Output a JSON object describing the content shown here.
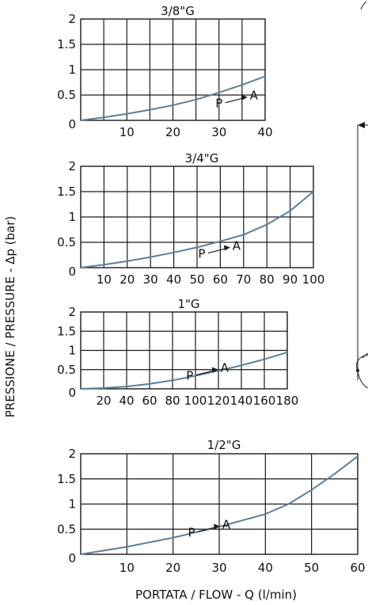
{
  "y_axis_label": "PRESSIONE / PRESSURE - Δp (bar)",
  "x_axis_label": "PORTATA / FLOW - Q (l/min)",
  "chart_data": [
    {
      "type": "line",
      "title": "3/8\"G",
      "xlim": [
        0,
        40
      ],
      "ylim": [
        0,
        2
      ],
      "x_ticks": [
        10,
        20,
        30,
        40
      ],
      "y_ticks": [
        "0",
        "0.5",
        "1",
        "1.5",
        "2"
      ],
      "series": [
        {
          "name": "P→A",
          "x": [
            0,
            5,
            10,
            15,
            20,
            25,
            30,
            35,
            40
          ],
          "y": [
            0,
            0.06,
            0.13,
            0.21,
            0.3,
            0.41,
            0.55,
            0.7,
            0.87
          ]
        }
      ],
      "flow_label": {
        "from": "P",
        "to": "A"
      },
      "grid": true
    },
    {
      "type": "line",
      "title": "3/4\"G",
      "xlim": [
        0,
        100
      ],
      "ylim": [
        0,
        2
      ],
      "x_ticks": [
        10,
        20,
        30,
        40,
        50,
        60,
        70,
        80,
        90,
        100
      ],
      "y_ticks": [
        "0",
        "0.5",
        "1",
        "1.5",
        "2"
      ],
      "series": [
        {
          "name": "P→A",
          "x": [
            0,
            10,
            20,
            30,
            40,
            50,
            60,
            70,
            80,
            90,
            100
          ],
          "y": [
            0,
            0.06,
            0.13,
            0.21,
            0.3,
            0.4,
            0.52,
            0.65,
            0.85,
            1.12,
            1.5
          ]
        }
      ],
      "flow_label": {
        "from": "P",
        "to": "A"
      },
      "grid": true
    },
    {
      "type": "line",
      "title": "1\"G",
      "xlim": [
        0,
        180
      ],
      "ylim": [
        0,
        2
      ],
      "x_ticks": [
        20,
        40,
        60,
        80,
        100,
        120,
        140,
        160,
        180
      ],
      "y_ticks": [
        "0",
        "0.5",
        "1",
        "1.5",
        "2"
      ],
      "series": [
        {
          "name": "P→A",
          "x": [
            0,
            20,
            40,
            60,
            80,
            100,
            120,
            140,
            160,
            180
          ],
          "y": [
            0,
            0.02,
            0.06,
            0.13,
            0.22,
            0.34,
            0.47,
            0.61,
            0.77,
            0.95
          ]
        }
      ],
      "flow_label": {
        "from": "P",
        "to": "A"
      },
      "grid": true
    },
    {
      "type": "line",
      "title": "1/2\"G",
      "xlim": [
        0,
        60
      ],
      "ylim": [
        0,
        2
      ],
      "x_ticks": [
        10,
        20,
        30,
        40,
        50,
        60
      ],
      "y_ticks": [
        "0",
        "0.5",
        "1",
        "1.5",
        "2"
      ],
      "series": [
        {
          "name": "P→A",
          "x": [
            0,
            10,
            20,
            30,
            40,
            45,
            50,
            55,
            60
          ],
          "y": [
            0,
            0.15,
            0.33,
            0.55,
            0.8,
            1.0,
            1.28,
            1.6,
            1.95
          ]
        }
      ],
      "flow_label": {
        "from": "P",
        "to": "A"
      },
      "grid": true
    }
  ]
}
